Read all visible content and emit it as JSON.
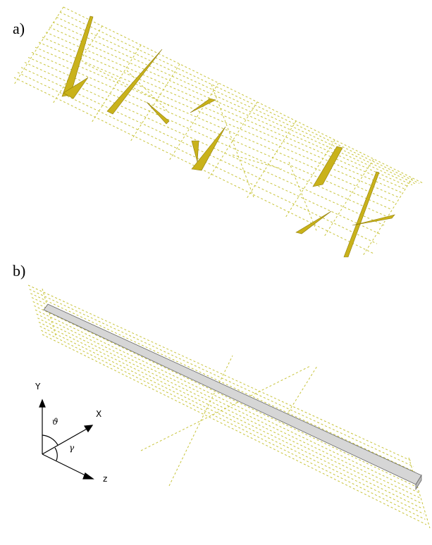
{
  "panels": [
    {
      "label": "a)"
    },
    {
      "label": "b)"
    }
  ],
  "axes": {
    "y": "Y",
    "x": "X",
    "z": "z",
    "theta": "ϑ",
    "gamma": "γ"
  }
}
